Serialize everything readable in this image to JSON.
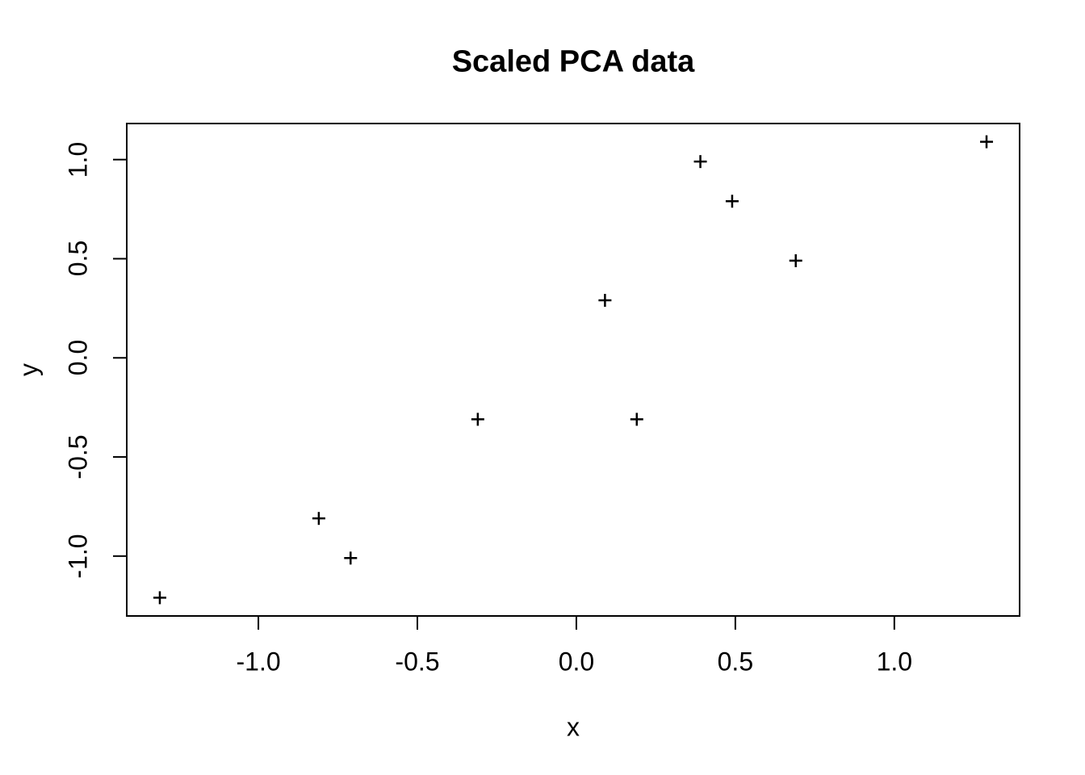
{
  "chart_data": {
    "type": "scatter",
    "title": "Scaled PCA data",
    "xlabel": "x",
    "ylabel": "y",
    "x": [
      0.69,
      -1.31,
      0.39,
      0.09,
      1.29,
      0.49,
      0.19,
      -0.81,
      -0.31,
      -0.71
    ],
    "y": [
      0.49,
      -1.21,
      0.99,
      0.29,
      1.09,
      0.79,
      -0.31,
      -0.81,
      -0.31,
      -1.01
    ],
    "xlim": [
      -1.414,
      1.394
    ],
    "ylim": [
      -1.302,
      1.182
    ],
    "x_tick_values": [
      -1.0,
      -0.5,
      0.0,
      0.5,
      1.0
    ],
    "x_tick_labels": [
      "-1.0",
      "-0.5",
      "0.0",
      "0.5",
      "1.0"
    ],
    "y_tick_values": [
      -1.0,
      -0.5,
      0.0,
      0.5,
      1.0
    ],
    "y_tick_labels": [
      "-1.0",
      "-0.5",
      "0.0",
      "0.5",
      "1.0"
    ],
    "marker": "plus-cross",
    "grid": false,
    "legend": null,
    "point_color": "#000000",
    "axis_color": "#000000",
    "background_color": "#ffffff"
  }
}
